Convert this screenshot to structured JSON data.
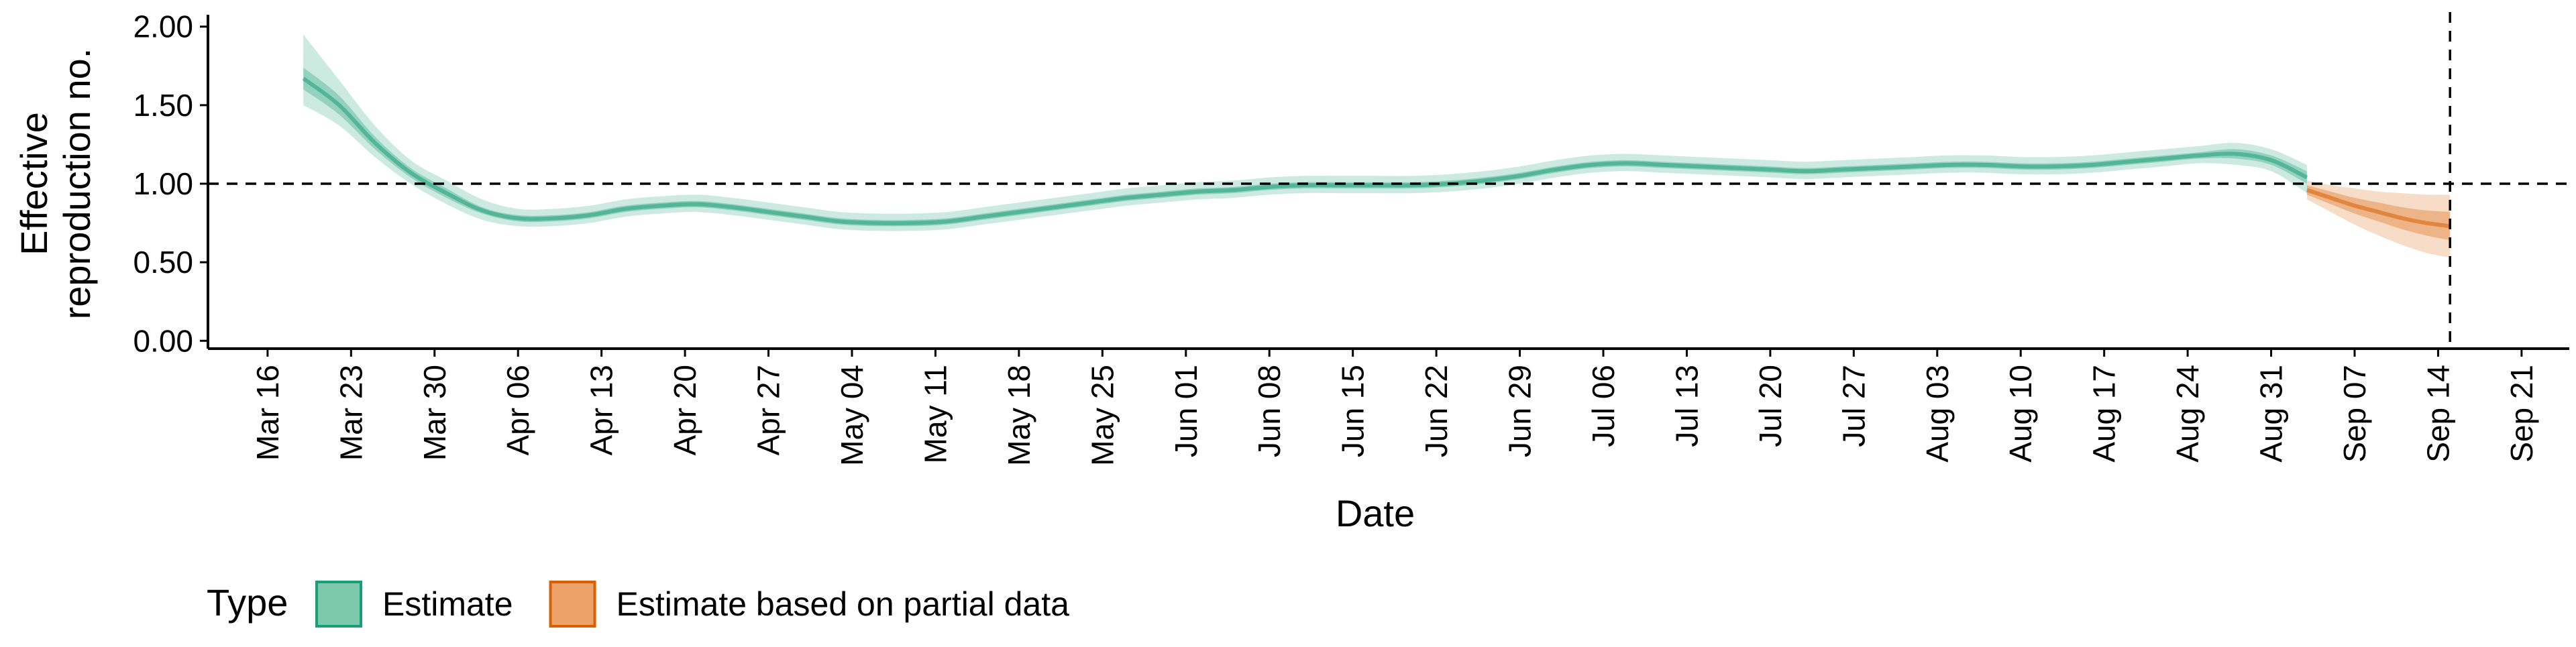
{
  "chart_data": {
    "type": "line",
    "xlabel": "Date",
    "ylabel": [
      "Effective",
      "reproduction no."
    ],
    "ylim": [
      -0.05,
      2.05
    ],
    "y_ticks": [
      "0.00",
      "0.50",
      "1.00",
      "1.50",
      "2.00"
    ],
    "y_tick_values": [
      0,
      0.5,
      1,
      1.5,
      2
    ],
    "x_tick_labels": [
      "Mar 16",
      "Mar 23",
      "Mar 30",
      "Apr 06",
      "Apr 13",
      "Apr 20",
      "Apr 27",
      "May 04",
      "May 11",
      "May 18",
      "May 25",
      "Jun 01",
      "Jun 08",
      "Jun 15",
      "Jun 22",
      "Jun 29",
      "Jul 06",
      "Jul 13",
      "Jul 20",
      "Jul 27",
      "Aug 03",
      "Aug 10",
      "Aug 17",
      "Aug 24",
      "Aug 31",
      "Sep 07",
      "Sep 14",
      "Sep 21"
    ],
    "x_tick_dates": [
      "2020-03-16",
      "2020-03-23",
      "2020-03-30",
      "2020-04-06",
      "2020-04-13",
      "2020-04-20",
      "2020-04-27",
      "2020-05-04",
      "2020-05-11",
      "2020-05-18",
      "2020-05-25",
      "2020-06-01",
      "2020-06-08",
      "2020-06-15",
      "2020-06-22",
      "2020-06-29",
      "2020-07-06",
      "2020-07-13",
      "2020-07-20",
      "2020-07-27",
      "2020-08-03",
      "2020-08-10",
      "2020-08-17",
      "2020-08-24",
      "2020-08-31",
      "2020-09-07",
      "2020-09-14",
      "2020-09-21"
    ],
    "xlim": [
      "2020-03-11",
      "2020-09-25"
    ],
    "reference_lines": {
      "y": 1.0,
      "x": "2020-09-15",
      "style": "dashed"
    },
    "grid": false,
    "legend": {
      "title": "Type",
      "placement": "bottom-left",
      "entries": [
        {
          "label": "Estimate",
          "fill": "#7cc9ac",
          "stroke": "#1b9e77"
        },
        {
          "label": "Estimate based on partial data",
          "fill": "#eda26a",
          "stroke": "#d95f02"
        }
      ]
    },
    "series": [
      {
        "name": "Estimate",
        "color": "#1b9e77",
        "x": [
          "2020-03-19",
          "2020-03-22",
          "2020-03-25",
          "2020-03-28",
          "2020-03-31",
          "2020-04-03",
          "2020-04-06",
          "2020-04-09",
          "2020-04-12",
          "2020-04-15",
          "2020-04-18",
          "2020-04-21",
          "2020-04-24",
          "2020-04-27",
          "2020-04-30",
          "2020-05-03",
          "2020-05-06",
          "2020-05-09",
          "2020-05-12",
          "2020-05-15",
          "2020-05-18",
          "2020-05-21",
          "2020-05-24",
          "2020-05-27",
          "2020-05-30",
          "2020-06-02",
          "2020-06-05",
          "2020-06-08",
          "2020-06-11",
          "2020-06-14",
          "2020-06-17",
          "2020-06-20",
          "2020-06-23",
          "2020-06-26",
          "2020-06-29",
          "2020-07-02",
          "2020-07-05",
          "2020-07-08",
          "2020-07-11",
          "2020-07-14",
          "2020-07-17",
          "2020-07-20",
          "2020-07-23",
          "2020-07-26",
          "2020-07-29",
          "2020-08-01",
          "2020-08-04",
          "2020-08-07",
          "2020-08-10",
          "2020-08-13",
          "2020-08-16",
          "2020-08-19",
          "2020-08-22",
          "2020-08-25",
          "2020-08-28",
          "2020-08-31",
          "2020-09-03"
        ],
        "median": [
          1.67,
          1.5,
          1.26,
          1.07,
          0.94,
          0.83,
          0.78,
          0.78,
          0.8,
          0.84,
          0.86,
          0.87,
          0.85,
          0.82,
          0.79,
          0.76,
          0.75,
          0.75,
          0.76,
          0.79,
          0.82,
          0.85,
          0.88,
          0.91,
          0.93,
          0.95,
          0.96,
          0.98,
          0.99,
          0.99,
          0.99,
          0.99,
          1.0,
          1.02,
          1.05,
          1.09,
          1.12,
          1.13,
          1.12,
          1.11,
          1.1,
          1.09,
          1.08,
          1.09,
          1.1,
          1.11,
          1.12,
          1.12,
          1.11,
          1.11,
          1.12,
          1.14,
          1.16,
          1.18,
          1.19,
          1.15,
          1.04
        ],
        "lower50": [
          1.6,
          1.44,
          1.22,
          1.04,
          0.91,
          0.81,
          0.76,
          0.76,
          0.78,
          0.82,
          0.84,
          0.85,
          0.83,
          0.8,
          0.77,
          0.74,
          0.73,
          0.73,
          0.74,
          0.77,
          0.8,
          0.83,
          0.86,
          0.89,
          0.91,
          0.93,
          0.94,
          0.96,
          0.97,
          0.97,
          0.97,
          0.97,
          0.98,
          1.0,
          1.03,
          1.07,
          1.1,
          1.11,
          1.1,
          1.09,
          1.08,
          1.07,
          1.06,
          1.07,
          1.08,
          1.09,
          1.1,
          1.1,
          1.09,
          1.09,
          1.1,
          1.12,
          1.14,
          1.16,
          1.16,
          1.12,
          1.0
        ],
        "upper50": [
          1.74,
          1.56,
          1.3,
          1.1,
          0.97,
          0.85,
          0.8,
          0.8,
          0.82,
          0.86,
          0.88,
          0.89,
          0.87,
          0.84,
          0.81,
          0.78,
          0.77,
          0.77,
          0.78,
          0.81,
          0.84,
          0.87,
          0.9,
          0.93,
          0.95,
          0.97,
          0.98,
          1.0,
          1.01,
          1.01,
          1.01,
          1.01,
          1.02,
          1.04,
          1.07,
          1.11,
          1.14,
          1.15,
          1.14,
          1.13,
          1.12,
          1.11,
          1.1,
          1.11,
          1.12,
          1.13,
          1.14,
          1.14,
          1.13,
          1.13,
          1.14,
          1.16,
          1.18,
          1.2,
          1.22,
          1.18,
          1.08
        ],
        "lower90": [
          1.5,
          1.37,
          1.17,
          1.0,
          0.87,
          0.77,
          0.73,
          0.73,
          0.75,
          0.79,
          0.81,
          0.82,
          0.8,
          0.77,
          0.74,
          0.71,
          0.7,
          0.7,
          0.71,
          0.74,
          0.77,
          0.8,
          0.83,
          0.86,
          0.88,
          0.9,
          0.91,
          0.93,
          0.94,
          0.94,
          0.94,
          0.94,
          0.95,
          0.97,
          1.0,
          1.04,
          1.07,
          1.08,
          1.07,
          1.06,
          1.05,
          1.04,
          1.03,
          1.04,
          1.05,
          1.06,
          1.07,
          1.07,
          1.06,
          1.06,
          1.07,
          1.09,
          1.11,
          1.13,
          1.12,
          1.08,
          0.94
        ],
        "upper90": [
          1.95,
          1.66,
          1.37,
          1.15,
          1.02,
          0.9,
          0.84,
          0.84,
          0.86,
          0.9,
          0.92,
          0.93,
          0.91,
          0.88,
          0.85,
          0.82,
          0.81,
          0.81,
          0.82,
          0.85,
          0.88,
          0.91,
          0.94,
          0.97,
          0.99,
          1.01,
          1.02,
          1.04,
          1.05,
          1.05,
          1.05,
          1.05,
          1.06,
          1.08,
          1.11,
          1.15,
          1.18,
          1.19,
          1.18,
          1.17,
          1.16,
          1.15,
          1.14,
          1.15,
          1.16,
          1.17,
          1.18,
          1.18,
          1.17,
          1.17,
          1.18,
          1.2,
          1.22,
          1.24,
          1.26,
          1.22,
          1.12
        ]
      },
      {
        "name": "Estimate based on partial data",
        "color": "#d95f02",
        "x": [
          "2020-09-03",
          "2020-09-05",
          "2020-09-07",
          "2020-09-09",
          "2020-09-11",
          "2020-09-13",
          "2020-09-15"
        ],
        "median": [
          0.96,
          0.91,
          0.86,
          0.82,
          0.78,
          0.75,
          0.73
        ],
        "lower50": [
          0.93,
          0.87,
          0.81,
          0.76,
          0.71,
          0.67,
          0.64
        ],
        "upper50": [
          0.99,
          0.95,
          0.91,
          0.88,
          0.85,
          0.83,
          0.82
        ],
        "lower90": [
          0.9,
          0.82,
          0.74,
          0.67,
          0.61,
          0.56,
          0.53
        ],
        "upper90": [
          1.02,
          0.99,
          0.97,
          0.95,
          0.94,
          0.93,
          0.93
        ]
      }
    ]
  }
}
